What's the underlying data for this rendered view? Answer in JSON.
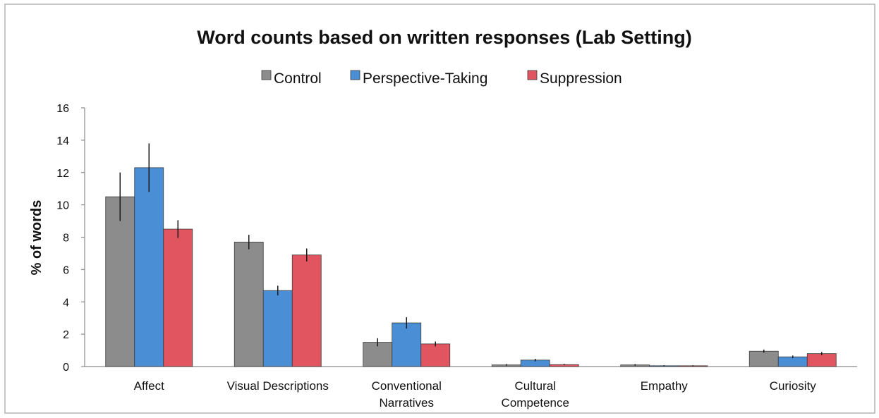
{
  "chart_data": {
    "type": "bar",
    "title": "Word counts based on written responses (Lab Setting)",
    "xlabel": "",
    "ylabel": "% of words",
    "ylim": [
      0,
      16
    ],
    "yticks": [
      "0",
      "2",
      "4",
      "6",
      "8",
      "10",
      "12",
      "14",
      "16"
    ],
    "grid": false,
    "legend_position": "top",
    "categories": [
      [
        "Affect"
      ],
      [
        "Visual Descriptions"
      ],
      [
        "Conventional",
        "Narratives"
      ],
      [
        "Cultural",
        "Competence"
      ],
      [
        "Empathy"
      ],
      [
        "Curiosity"
      ]
    ],
    "series": [
      {
        "name": "Control",
        "color": "#8c8c8c",
        "values": [
          10.5,
          7.7,
          1.5,
          0.1,
          0.1,
          0.95
        ],
        "errors": [
          1.5,
          0.45,
          0.25,
          0.05,
          0.05,
          0.1
        ]
      },
      {
        "name": "Perspective-Taking",
        "color": "#4a8fd6",
        "values": [
          12.3,
          4.7,
          2.7,
          0.4,
          0.05,
          0.6
        ],
        "errors": [
          1.5,
          0.3,
          0.35,
          0.08,
          0.03,
          0.08
        ]
      },
      {
        "name": "Suppression",
        "color": "#e05560",
        "values": [
          8.5,
          6.9,
          1.4,
          0.12,
          0.05,
          0.8
        ],
        "errors": [
          0.55,
          0.4,
          0.15,
          0.04,
          0.03,
          0.1
        ]
      }
    ]
  }
}
